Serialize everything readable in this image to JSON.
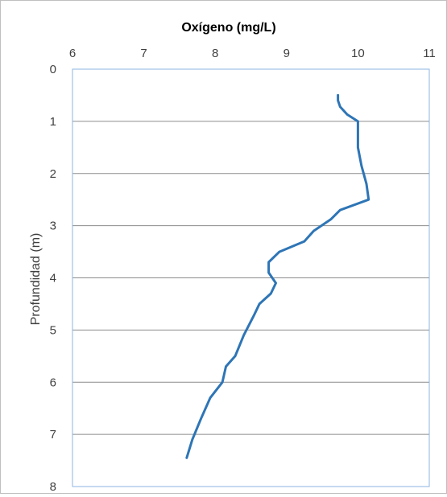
{
  "chart_data": {
    "type": "line",
    "title": "",
    "xlabel": "Oxígeno (mg/L)",
    "ylabel": "Profundidad (m)",
    "x_axis_position": "top",
    "y_axis_inverted": true,
    "xlim": [
      6,
      11
    ],
    "ylim": [
      0,
      8
    ],
    "x_ticks": [
      6,
      7,
      8,
      9,
      10,
      11
    ],
    "y_ticks": [
      0,
      1,
      2,
      3,
      4,
      5,
      6,
      7,
      8
    ],
    "grid": "horizontal",
    "legend": "none",
    "series_color": "#2e75b6",
    "series": [
      {
        "points": [
          {
            "x": 9.72,
            "y": 0.5
          },
          {
            "x": 9.72,
            "y": 0.6
          },
          {
            "x": 9.75,
            "y": 0.72
          },
          {
            "x": 9.85,
            "y": 0.87
          },
          {
            "x": 10.0,
            "y": 1.0
          },
          {
            "x": 10.0,
            "y": 1.25
          },
          {
            "x": 10.0,
            "y": 1.5
          },
          {
            "x": 10.05,
            "y": 1.85
          },
          {
            "x": 10.12,
            "y": 2.2
          },
          {
            "x": 10.15,
            "y": 2.5
          },
          {
            "x": 9.75,
            "y": 2.7
          },
          {
            "x": 9.62,
            "y": 2.88
          },
          {
            "x": 9.38,
            "y": 3.1
          },
          {
            "x": 9.25,
            "y": 3.3
          },
          {
            "x": 8.9,
            "y": 3.5
          },
          {
            "x": 8.75,
            "y": 3.7
          },
          {
            "x": 8.75,
            "y": 3.9
          },
          {
            "x": 8.85,
            "y": 4.1
          },
          {
            "x": 8.78,
            "y": 4.3
          },
          {
            "x": 8.62,
            "y": 4.5
          },
          {
            "x": 8.55,
            "y": 4.7
          },
          {
            "x": 8.4,
            "y": 5.1
          },
          {
            "x": 8.28,
            "y": 5.5
          },
          {
            "x": 8.15,
            "y": 5.7
          },
          {
            "x": 8.1,
            "y": 6.0
          },
          {
            "x": 7.93,
            "y": 6.3
          },
          {
            "x": 7.8,
            "y": 6.7
          },
          {
            "x": 7.68,
            "y": 7.1
          },
          {
            "x": 7.6,
            "y": 7.45
          }
        ]
      }
    ]
  }
}
